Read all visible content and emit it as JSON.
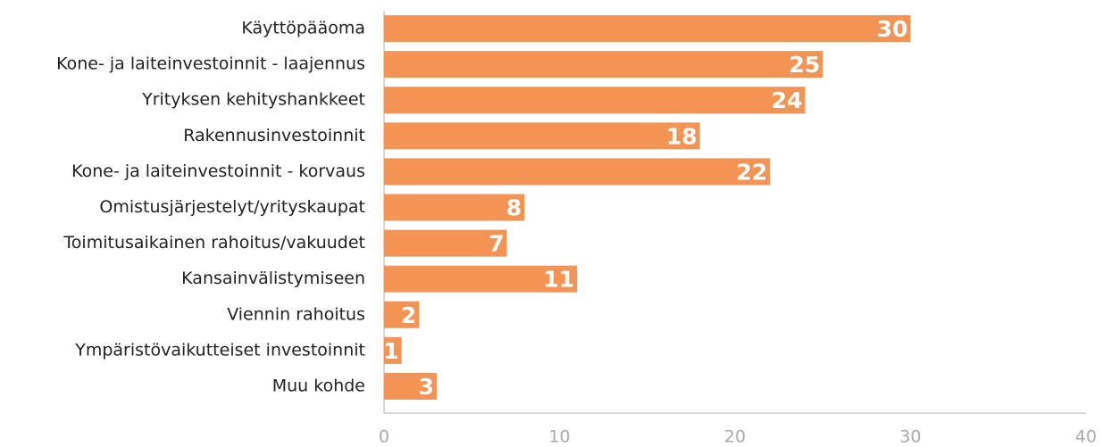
{
  "chart_data": {
    "type": "bar",
    "orientation": "horizontal",
    "categories": [
      "Käyttöpääoma",
      "Kone- ja laiteinvestoinnit - laajennus",
      "Yrityksen kehityshankkeet",
      "Rakennusinvestoinnit",
      "Kone- ja laiteinvestoinnit - korvaus",
      "Omistusjärjestelyt/yrityskaupat",
      "Toimitusaikainen rahoitus/vakuudet",
      "Kansainvälistymiseen",
      "Viennin rahoitus",
      "Ympäristövaikutteiset investoinnit",
      "Muu kohde"
    ],
    "values": [
      30,
      25,
      24,
      18,
      22,
      8,
      7,
      11,
      2,
      1,
      3
    ],
    "color": "#f39455",
    "xlim": [
      0,
      40
    ],
    "xticks": [
      0,
      10,
      20,
      30,
      40
    ],
    "grid": false
  }
}
